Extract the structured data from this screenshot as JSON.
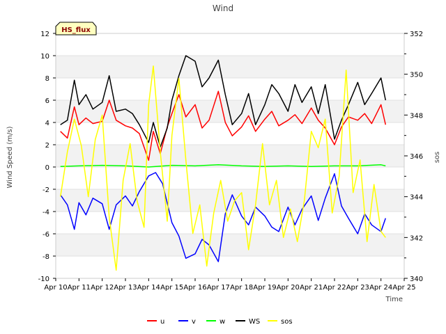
{
  "chart_data": {
    "type": "line",
    "title": "Wind",
    "xlabel": "Time",
    "ylabel": "Wind Speed (m/s)",
    "y2label": "sos",
    "badge": "HS_flux",
    "xlim": [
      10,
      25
    ],
    "ylim": [
      -10,
      12
    ],
    "y2lim": [
      340,
      352
    ],
    "xticks": [
      10,
      11,
      12,
      13,
      14,
      15,
      16,
      17,
      18,
      19,
      20,
      21,
      22,
      23,
      24,
      25
    ],
    "xtick_labels": [
      "Apr 10",
      "Apr 11",
      "Apr 12",
      "Apr 13",
      "Apr 14",
      "Apr 15",
      "Apr 16",
      "Apr 17",
      "Apr 18",
      "Apr 19",
      "Apr 20",
      "Apr 21",
      "Apr 22",
      "Apr 23",
      "Apr 24",
      "Apr 25"
    ],
    "yticks": [
      -10,
      -8,
      -6,
      -4,
      -2,
      0,
      2,
      4,
      6,
      8,
      10,
      12
    ],
    "y2ticks": [
      340,
      342,
      344,
      346,
      348,
      350,
      352
    ],
    "bands": [
      [
        -8,
        -6
      ],
      [
        -4,
        -2
      ],
      [
        0,
        2
      ],
      [
        4,
        6
      ],
      [
        8,
        10
      ]
    ],
    "series": [
      {
        "name": "u",
        "axis": "left",
        "color": "#ff0000",
        "x": [
          10.2,
          10.5,
          10.8,
          11.0,
          11.3,
          11.6,
          12.0,
          12.3,
          12.6,
          13.0,
          13.3,
          13.6,
          14.0,
          14.2,
          14.5,
          14.8,
          15.0,
          15.3,
          15.6,
          16.0,
          16.3,
          16.6,
          17.0,
          17.3,
          17.6,
          18.0,
          18.3,
          18.6,
          19.0,
          19.3,
          19.6,
          20.0,
          20.3,
          20.6,
          21.0,
          21.3,
          21.6,
          22.0,
          22.3,
          22.6,
          23.0,
          23.3,
          23.6,
          24.0,
          24.2
        ],
        "y": [
          3.2,
          2.6,
          5.4,
          3.8,
          4.4,
          3.9,
          4.1,
          6.0,
          4.2,
          3.7,
          3.5,
          3.0,
          0.6,
          3.2,
          1.2,
          3.6,
          4.8,
          6.5,
          4.5,
          5.6,
          3.5,
          4.2,
          6.8,
          4.0,
          2.8,
          3.6,
          4.6,
          3.2,
          4.3,
          5.0,
          3.7,
          4.2,
          4.7,
          3.9,
          5.3,
          4.2,
          3.5,
          2.0,
          3.6,
          4.5,
          4.2,
          4.8,
          3.9,
          5.6,
          3.8
        ]
      },
      {
        "name": "v",
        "axis": "left",
        "color": "#0000ff",
        "x": [
          10.2,
          10.5,
          10.8,
          11.0,
          11.3,
          11.6,
          12.0,
          12.3,
          12.6,
          13.0,
          13.3,
          13.6,
          14.0,
          14.3,
          14.6,
          15.0,
          15.3,
          15.6,
          16.0,
          16.3,
          16.6,
          17.0,
          17.3,
          17.6,
          18.0,
          18.3,
          18.6,
          19.0,
          19.3,
          19.6,
          20.0,
          20.3,
          20.6,
          21.0,
          21.3,
          21.6,
          22.0,
          22.3,
          22.6,
          23.0,
          23.3,
          23.6,
          24.0,
          24.2
        ],
        "y": [
          -2.5,
          -3.4,
          -5.6,
          -3.2,
          -4.3,
          -2.8,
          -3.3,
          -5.6,
          -3.4,
          -2.6,
          -3.5,
          -2.2,
          -0.8,
          -0.5,
          -1.5,
          -5.0,
          -6.2,
          -8.2,
          -7.8,
          -6.5,
          -7.0,
          -8.5,
          -4.2,
          -2.5,
          -4.4,
          -5.2,
          -3.6,
          -4.4,
          -5.4,
          -5.8,
          -3.6,
          -5.2,
          -3.8,
          -2.6,
          -4.8,
          -2.8,
          -0.6,
          -3.5,
          -4.6,
          -6.0,
          -4.2,
          -5.2,
          -5.8,
          -4.6
        ]
      },
      {
        "name": "w",
        "axis": "left",
        "color": "#00ff00",
        "x": [
          10.2,
          11.0,
          12.0,
          13.0,
          14.0,
          15.0,
          16.0,
          17.0,
          18.0,
          19.0,
          20.0,
          21.0,
          22.0,
          23.0,
          24.0,
          24.2
        ],
        "y": [
          0.05,
          0.1,
          0.15,
          0.1,
          0.0,
          0.15,
          0.1,
          0.2,
          0.1,
          0.05,
          0.1,
          0.05,
          0.1,
          0.1,
          0.2,
          0.1
        ]
      },
      {
        "name": "WS",
        "axis": "left",
        "color": "#000000",
        "x": [
          10.2,
          10.5,
          10.8,
          11.0,
          11.3,
          11.6,
          12.0,
          12.3,
          12.6,
          13.0,
          13.3,
          13.6,
          14.0,
          14.2,
          14.5,
          14.8,
          15.0,
          15.3,
          15.6,
          16.0,
          16.3,
          16.6,
          17.0,
          17.3,
          17.6,
          18.0,
          18.3,
          18.6,
          19.0,
          19.3,
          19.6,
          20.0,
          20.3,
          20.6,
          21.0,
          21.3,
          21.6,
          22.0,
          22.3,
          22.6,
          23.0,
          23.3,
          23.6,
          24.0,
          24.2
        ],
        "y": [
          3.8,
          4.2,
          7.8,
          5.6,
          6.5,
          5.2,
          5.8,
          8.2,
          5.0,
          5.2,
          4.8,
          3.8,
          2.2,
          4.0,
          1.8,
          3.5,
          6.0,
          8.2,
          10.0,
          9.5,
          7.2,
          8.0,
          9.6,
          6.5,
          3.8,
          4.8,
          6.6,
          3.8,
          5.6,
          7.4,
          6.6,
          5.0,
          7.4,
          5.8,
          7.2,
          4.8,
          7.4,
          2.5,
          4.2,
          5.6,
          7.6,
          5.6,
          6.6,
          8.0,
          6.0
        ]
      },
      {
        "name": "sos",
        "axis": "right",
        "color": "#ffff00",
        "x": [
          10.2,
          10.5,
          10.8,
          11.1,
          11.4,
          11.7,
          12.0,
          12.3,
          12.6,
          12.9,
          13.2,
          13.5,
          13.8,
          14.0,
          14.2,
          14.5,
          14.8,
          15.0,
          15.3,
          15.6,
          15.9,
          16.2,
          16.5,
          16.8,
          17.1,
          17.4,
          17.7,
          18.0,
          18.3,
          18.6,
          18.9,
          19.2,
          19.5,
          19.8,
          20.1,
          20.4,
          20.7,
          21.0,
          21.3,
          21.6,
          21.9,
          22.2,
          22.5,
          22.8,
          23.1,
          23.4,
          23.7,
          24.0,
          24.2
        ],
        "y": [
          344.0,
          346.2,
          347.8,
          346.5,
          344.0,
          346.8,
          348.0,
          343.0,
          340.4,
          344.8,
          346.6,
          343.8,
          342.5,
          348.5,
          350.4,
          346.2,
          342.8,
          347.0,
          349.8,
          345.8,
          342.2,
          343.6,
          340.6,
          343.2,
          344.8,
          342.8,
          343.8,
          344.2,
          341.4,
          343.6,
          346.6,
          343.6,
          344.8,
          342.0,
          343.4,
          341.8,
          343.8,
          347.2,
          346.4,
          347.8,
          343.2,
          345.0,
          350.2,
          344.2,
          345.8,
          341.8,
          344.6,
          342.3,
          342.0
        ]
      }
    ],
    "legend": [
      "u",
      "v",
      "w",
      "WS",
      "sos"
    ],
    "legend_position": "bottom"
  }
}
